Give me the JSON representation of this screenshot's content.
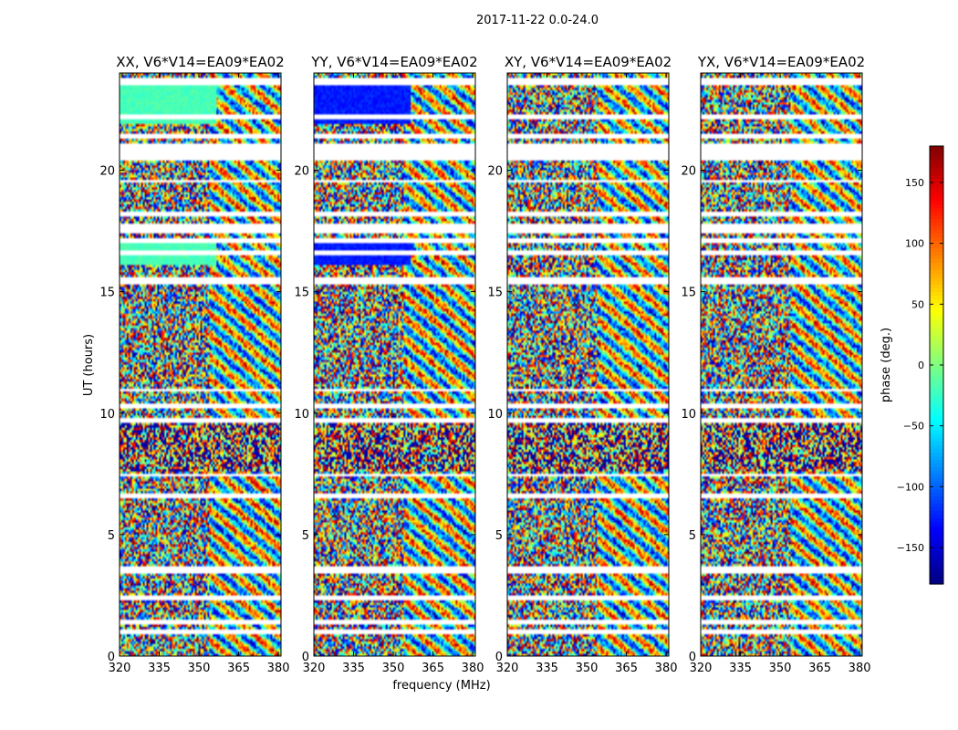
{
  "figure_title": "2017-11-22 0.0-24.0",
  "chart_data": [
    {
      "type": "heatmap",
      "title": "XX, V6*V14=EA09*EA02",
      "xlabel": "frequency (MHz)",
      "ylabel": "UT (hours)",
      "xlim": [
        320,
        381
      ],
      "ylim": [
        0,
        24
      ],
      "xticks": [
        320,
        335,
        350,
        365,
        380
      ],
      "yticks": [
        0,
        5,
        10,
        15,
        20
      ],
      "value": "phase (deg.)"
    },
    {
      "type": "heatmap",
      "title": "YY, V6*V14=EA09*EA02",
      "xlabel": "frequency (MHz)",
      "ylabel": "UT (hours)",
      "xlim": [
        320,
        381
      ],
      "ylim": [
        0,
        24
      ],
      "xticks": [
        320,
        335,
        350,
        365,
        380
      ],
      "yticks": [
        0,
        5,
        10,
        15,
        20
      ],
      "value": "phase (deg.)"
    },
    {
      "type": "heatmap",
      "title": "XY, V6*V14=EA09*EA02",
      "xlabel": "frequency (MHz)",
      "ylabel": "UT (hours)",
      "xlim": [
        320,
        381
      ],
      "ylim": [
        0,
        24
      ],
      "xticks": [
        320,
        335,
        350,
        365,
        380
      ],
      "yticks": [
        0,
        5,
        10,
        15,
        20
      ],
      "value": "phase (deg.)"
    },
    {
      "type": "heatmap",
      "title": "YX, V6*V14=EA09*EA02",
      "xlabel": "frequency (MHz)",
      "ylabel": "UT (hours)",
      "xlim": [
        320,
        381
      ],
      "ylim": [
        0,
        24
      ],
      "xticks": [
        320,
        335,
        350,
        365,
        380
      ],
      "yticks": [
        0,
        5,
        10,
        15,
        20
      ],
      "value": "phase (deg.)"
    }
  ],
  "shared_axes": {
    "xlabel": "frequency (MHz)",
    "ylabel": "UT (hours)"
  },
  "colorbar": {
    "label": "phase (deg.)",
    "range": [
      -180,
      180
    ],
    "ticks": [
      -150,
      -100,
      -50,
      0,
      50,
      100,
      150
    ],
    "tick_labels": [
      "−150",
      "−100",
      "−50",
      "0",
      "50",
      "100",
      "150"
    ],
    "colormap": "jet"
  },
  "data_gaps_ut_hours": [
    [
      0.9,
      1.05
    ],
    [
      1.3,
      1.45
    ],
    [
      2.35,
      2.5
    ],
    [
      3.35,
      3.65
    ],
    [
      6.55,
      6.65
    ],
    [
      7.4,
      7.55
    ],
    [
      9.6,
      9.8
    ],
    [
      10.25,
      10.4
    ],
    [
      10.85,
      11.0
    ],
    [
      15.35,
      15.55
    ],
    [
      16.55,
      16.7
    ],
    [
      17.0,
      17.2
    ],
    [
      17.4,
      17.75
    ],
    [
      18.1,
      18.3
    ],
    [
      19.5,
      19.6
    ],
    [
      20.45,
      21.05
    ],
    [
      21.35,
      21.45
    ],
    [
      22.1,
      22.3
    ],
    [
      23.55,
      23.8
    ]
  ],
  "colors": {
    "axes": "#000000",
    "background": "#ffffff",
    "gap": "#ffffff"
  }
}
